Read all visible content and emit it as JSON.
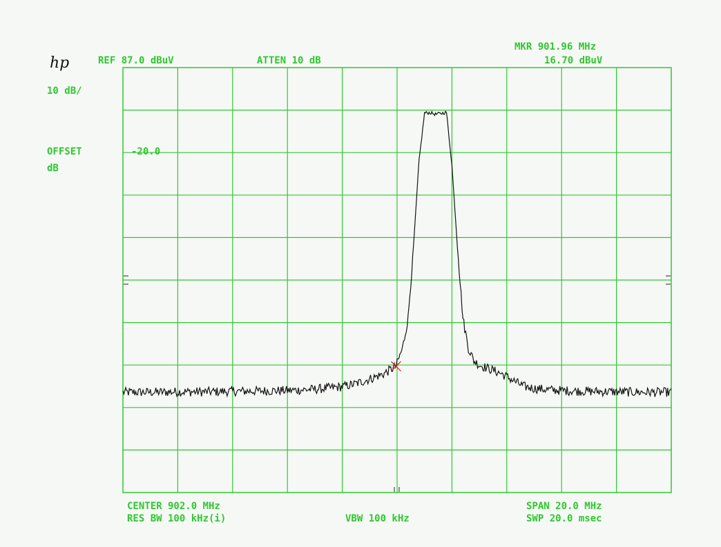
{
  "instrument": {
    "logo": "hp"
  },
  "header": {
    "ref_level": "REF 87.0 dBuV",
    "attenuation": "ATTEN 10 dB",
    "marker_freq": "MKR 901.96 MHz",
    "marker_level": "16.70 dBuV"
  },
  "left_panel": {
    "scale": "10 dB/",
    "offset_label": "OFFSET",
    "offset_unit": "dB",
    "offset_value": "-20.0"
  },
  "footer": {
    "center": "CENTER 902.0 MHz",
    "res_bw": "RES BW 100 kHz(i)",
    "vbw": "VBW 100 kHz",
    "span": "SPAN 20.0 MHz",
    "sweep": "SWP 20.0 msec"
  },
  "colors": {
    "grid": "#2ec82e",
    "trace": "#111111",
    "marker": "#e02020",
    "background": "#f6f8f6"
  },
  "chart_data": {
    "type": "line",
    "grid": true,
    "x_divisions": 10,
    "y_divisions": 10,
    "center_mhz": 902.0,
    "span_mhz": 20.0,
    "ref_level_dbuv": 87.0,
    "db_per_div": 10,
    "xlim_mhz": [
      892.0,
      912.0
    ],
    "ylim_dbuv": [
      -13.0,
      87.0
    ],
    "marker": {
      "x_mhz": 901.96,
      "y_dbuv": 16.7
    },
    "series": [
      {
        "x_mhz": [
          892.0,
          893.0,
          894.0,
          895.0,
          896.0,
          897.0,
          898.0,
          899.0,
          900.0,
          900.5,
          901.0,
          901.5,
          901.96,
          902.2,
          902.4,
          902.6,
          902.8,
          903.0,
          903.2,
          903.4,
          903.6,
          903.8,
          904.0,
          904.2,
          904.4,
          904.6,
          904.8,
          905.0,
          905.4,
          905.8,
          906.2,
          906.6,
          907.0,
          907.5,
          908.0,
          909.0,
          910.0,
          911.0,
          912.0
        ],
        "y_dbuv": [
          10.6,
          10.6,
          10.7,
          10.7,
          10.8,
          10.9,
          11.0,
          11.3,
          11.9,
          12.6,
          13.7,
          14.9,
          16.7,
          21.0,
          28.0,
          45.0,
          65.0,
          76.3,
          76.4,
          76.0,
          76.2,
          76.5,
          64.0,
          45.0,
          28.0,
          21.0,
          18.0,
          17.0,
          16.0,
          15.0,
          13.5,
          12.0,
          11.5,
          11.2,
          11.0,
          10.8,
          10.7,
          10.6,
          10.6
        ]
      }
    ]
  }
}
